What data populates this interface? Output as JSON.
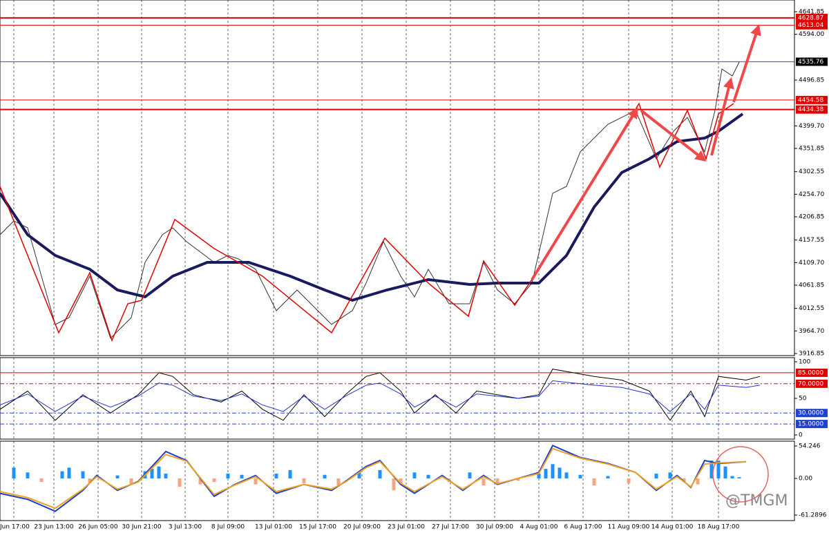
{
  "chart_data": [
    {
      "type": "line",
      "xlim": [
        0,
        115
      ],
      "xticks": [
        {
          "value": 2,
          "label": "Jun 17:00"
        },
        {
          "value": 7.8,
          "label": "23 Jun 13:00"
        },
        {
          "value": 14.2,
          "label": "26 Jun 05:00"
        },
        {
          "value": 20.5,
          "label": "30 Jun 21:00"
        },
        {
          "value": 26.8,
          "label": "3 Jul 13:00"
        },
        {
          "value": 33,
          "label": "8 Jul 09:00"
        },
        {
          "value": 39.6,
          "label": "13 Jul 01:00"
        },
        {
          "value": 46,
          "label": "15 Jul 17:00"
        },
        {
          "value": 52.4,
          "label": "20 Jul 09:00"
        },
        {
          "value": 58.8,
          "label": "23 Jul 01:00"
        },
        {
          "value": 65.2,
          "label": "27 Jul 17:00"
        },
        {
          "value": 71.6,
          "label": "30 Jul 09:00"
        },
        {
          "value": 78,
          "label": "4 Aug 01:00"
        },
        {
          "value": 84.4,
          "label": "6 Aug 17:00"
        },
        {
          "value": 91,
          "label": "11 Aug 09:00"
        },
        {
          "value": 97.3,
          "label": "14 Aug 01:00"
        },
        {
          "value": 104,
          "label": "18 Aug 17:00"
        }
      ],
      "ylim": [
        3916.85,
        4641.85
      ],
      "yticks": [
        4641.85,
        {
          "value": 4594,
          "label": "4594.00"
        },
        4496.85,
        {
          "value": 4399.7,
          "label": "4399.70"
        },
        4351.85,
        4302.55,
        {
          "value": 4254.7,
          "label": "4254.70"
        },
        4206.85,
        4157.55,
        {
          "value": 4109.7,
          "label": "4109.70"
        },
        4061.85,
        4012.55,
        {
          "value": 3964.7,
          "label": "3964.70"
        },
        3916.85
      ],
      "levels": [
        {
          "value": 4628.87,
          "color": "#e00000"
        },
        {
          "value": 4613.04,
          "color": "#e00000"
        },
        {
          "value": 4535.76,
          "color": "#2050d0"
        },
        {
          "value": 4454.58,
          "color": "#e00000"
        },
        {
          "value": 4434.38,
          "color": "#e00000"
        }
      ],
      "series": [
        {
          "color": "#333333",
          "x": [
            0,
            2,
            4,
            8,
            10,
            13,
            16,
            19,
            21,
            23.5,
            25,
            27,
            31,
            33,
            34.5,
            37,
            40,
            43,
            48,
            51,
            53,
            55.5,
            58,
            60,
            62,
            65,
            68,
            70,
            72,
            74.5,
            77,
            80,
            82,
            84,
            88,
            92,
            95,
            97.5,
            99.5,
            102,
            103.5,
            104.5,
            106,
            107
          ],
          "values": [
            4168.8,
            4198.1,
            4183.4,
            3978.4,
            3993.0,
            4080.9,
            3949.1,
            3993.0,
            4110.2,
            4168.8,
            4183.4,
            4154.1,
            4110.2,
            4124.8,
            4117.5,
            4095.5,
            4007.7,
            4051.6,
            3978.4,
            4007.7,
            4066.3,
            4154.1,
            4080.9,
            4037.0,
            4095.5,
            4022.3,
            4022.3,
            4110.2,
            4051.6,
            4022.3,
            4066.3,
            4256.7,
            4271.3,
            4344.6,
            4403.1,
            4432.4,
            4329.9,
            4388.5,
            4417.8,
            4344.6,
            4432.4,
            4520.3,
            4505.6,
            4534.9
          ]
        },
        {
          "color": "#1a1a5e",
          "x": [
            0,
            4,
            8,
            13,
            17,
            21,
            25,
            30,
            36,
            42,
            47,
            51,
            56,
            62,
            68,
            72,
            78,
            82,
            86,
            90,
            94,
            98,
            102,
            104,
            107.5
          ],
          "values": [
            4256.7,
            4168.8,
            4124.8,
            4095.5,
            4051.6,
            4037.0,
            4080.9,
            4110.2,
            4110.2,
            4080.9,
            4051.6,
            4029.8,
            4051.6,
            4073.6,
            4063.3,
            4066.3,
            4066.3,
            4124.8,
            4227.4,
            4300.6,
            4329.9,
            4366.5,
            4373.8,
            4388.5,
            4425.1
          ]
        }
      ]
    },
    {
      "type": "line",
      "ylim": [
        0,
        100
      ],
      "yticks": [
        100,
        50,
        0
      ],
      "levels": [
        {
          "value": 85,
          "label": "85.0000",
          "color": "#e00000"
        },
        {
          "value": 70,
          "label": "70.0000",
          "color": "#e00000"
        },
        {
          "value": 30,
          "label": "30.0000",
          "color": "#2040d0"
        },
        {
          "value": 15,
          "label": "15.0000",
          "color": "#2040d0"
        }
      ],
      "series": [
        {
          "color": "#000000",
          "x": [
            0,
            4,
            8,
            12,
            16,
            20,
            23,
            25,
            28,
            32,
            35,
            38,
            41,
            44,
            47,
            50,
            53,
            55,
            58,
            60,
            63,
            66,
            69,
            72,
            75,
            78,
            80,
            83,
            86,
            90,
            94,
            97,
            100,
            102,
            104,
            108,
            110
          ],
          "values": [
            35,
            60,
            20,
            55,
            30,
            55,
            85,
            80,
            55,
            45,
            60,
            35,
            20,
            55,
            25,
            55,
            80,
            85,
            60,
            30,
            55,
            30,
            60,
            55,
            50,
            55,
            90,
            85,
            80,
            75,
            60,
            20,
            60,
            25,
            80,
            75,
            80
          ]
        },
        {
          "color": "#2030d0",
          "x": [
            0,
            4,
            8,
            12,
            16,
            20,
            23,
            25,
            28,
            32,
            35,
            38,
            41,
            44,
            47,
            50,
            53,
            55,
            58,
            60,
            63,
            66,
            69,
            72,
            75,
            78,
            80,
            83,
            86,
            90,
            94,
            97,
            100,
            102,
            104,
            108,
            110
          ],
          "values": [
            41,
            56,
            32,
            53,
            38,
            53,
            71,
            68,
            53,
            47,
            56,
            41,
            32,
            53,
            35,
            53,
            68,
            71,
            56,
            38,
            53,
            38,
            56,
            53,
            50,
            53,
            74,
            71,
            68,
            65,
            56,
            32,
            56,
            35,
            68,
            65,
            68
          ]
        }
      ]
    },
    {
      "type": "macd",
      "ylim": [
        -61.2896,
        54.246
      ],
      "yticks": [
        54.246,
        {
          "value": 0,
          "label": "0.00"
        },
        -61.2896
      ],
      "series": [
        {
          "color": "#1a3fd0",
          "x": [
            0,
            4,
            8,
            12,
            14,
            17,
            20,
            24,
            27,
            31,
            34,
            37,
            40,
            44,
            48,
            50,
            53,
            55,
            58,
            60,
            64,
            67,
            70,
            72,
            75,
            78,
            80,
            84,
            88,
            92,
            95,
            98,
            100,
            102,
            104,
            108
          ],
          "values": [
            -25,
            -35,
            -55,
            -20,
            5,
            -20,
            -5,
            45,
            30,
            -30,
            -10,
            5,
            -25,
            -10,
            -20,
            -5,
            20,
            30,
            -10,
            -25,
            5,
            -20,
            5,
            -10,
            0,
            10,
            55,
            35,
            25,
            10,
            -20,
            5,
            -15,
            30,
            25,
            28
          ]
        },
        {
          "color": "#f0a020",
          "x": [
            0,
            4,
            8,
            12,
            14,
            17,
            20,
            24,
            27,
            31,
            34,
            37,
            40,
            44,
            48,
            50,
            53,
            55,
            58,
            60,
            64,
            67,
            70,
            72,
            75,
            78,
            80,
            84,
            88,
            92,
            95,
            98,
            100,
            102,
            104,
            108
          ],
          "values": [
            -22,
            -32,
            -50,
            -18,
            3,
            -18,
            -6,
            40,
            29,
            -27,
            -11,
            3,
            -22,
            -10,
            -18,
            -6,
            18,
            28,
            -8,
            -22,
            3,
            -18,
            3,
            -9,
            0,
            8,
            50,
            34,
            24,
            10,
            -18,
            3,
            -14,
            24,
            26,
            28
          ]
        }
      ],
      "histogram": {
        "pos_color": "#1e90ff",
        "neg_color": "#f4a582",
        "x": [
          2,
          4,
          6,
          9,
          10,
          12,
          13,
          17,
          19,
          21,
          22,
          23,
          24,
          26,
          29,
          31,
          33,
          35,
          37,
          40,
          42,
          44,
          47,
          49,
          52,
          55,
          57,
          58,
          60,
          62,
          65,
          68,
          70,
          72,
          75,
          78,
          79,
          80,
          81,
          82,
          84,
          86,
          88,
          91,
          95,
          97,
          99,
          101,
          103,
          104,
          105,
          106,
          107
        ],
        "values": [
          18,
          10,
          -6,
          12,
          18,
          12,
          -8,
          5,
          -10,
          12,
          16,
          20,
          8,
          -14,
          -10,
          -6,
          8,
          6,
          -10,
          8,
          14,
          -8,
          6,
          -12,
          10,
          14,
          -20,
          -10,
          10,
          6,
          -6,
          10,
          -12,
          -8,
          -4,
          8,
          16,
          24,
          18,
          10,
          6,
          -12,
          4,
          -8,
          8,
          10,
          -6,
          -10,
          30,
          30,
          20,
          4,
          2
        ]
      }
    }
  ],
  "watermark": "@TMGM"
}
